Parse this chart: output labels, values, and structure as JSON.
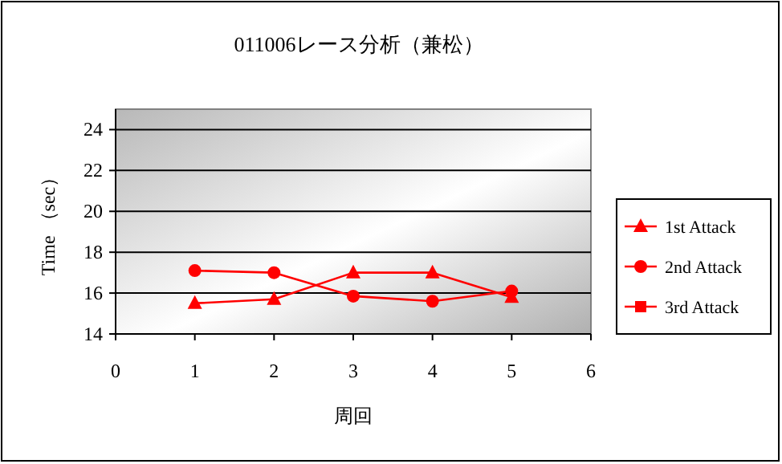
{
  "chart_data": {
    "type": "line",
    "title": "011006レース分析（兼松）",
    "xlabel": "周回",
    "ylabel": "Time （sec）",
    "x": [
      1,
      2,
      3,
      4,
      5
    ],
    "xlim": [
      0,
      6
    ],
    "xticks": [
      0,
      1,
      2,
      3,
      4,
      5,
      6
    ],
    "ylim": [
      14,
      25
    ],
    "yticks": [
      14,
      16,
      18,
      20,
      22,
      24
    ],
    "grid": "y",
    "legend": "right",
    "series": [
      {
        "name": "1st Attack",
        "color": "#ff0000",
        "marker": "triangle",
        "values": [
          15.5,
          15.7,
          17.0,
          17.0,
          15.8
        ]
      },
      {
        "name": "2nd Attack",
        "color": "#ff0000",
        "marker": "circle",
        "values": [
          17.1,
          17.0,
          15.85,
          15.6,
          16.1
        ]
      },
      {
        "name": "3rd Attack",
        "color": "#ff0000",
        "marker": "square",
        "values": [
          null,
          null,
          null,
          null,
          null
        ]
      }
    ]
  }
}
